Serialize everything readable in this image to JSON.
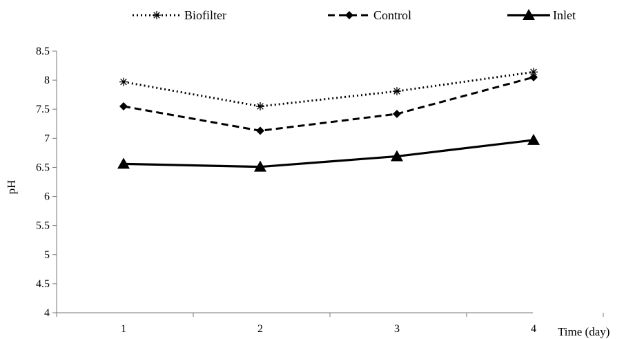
{
  "chart_data": {
    "type": "line",
    "xlabel": "Time (day)",
    "ylabel": "pH",
    "x": [
      1,
      2,
      3,
      4
    ],
    "ylim": [
      4,
      8.5
    ],
    "yticks": [
      "4",
      "4.5",
      "5",
      "5.5",
      "6",
      "6.5",
      "7",
      "7.5",
      "8",
      "8.5"
    ],
    "xticks": [
      "1",
      "2",
      "3",
      "4"
    ],
    "grid": false,
    "legend_position": "top",
    "series": [
      {
        "name": "Biofilter",
        "values": [
          7.97,
          7.55,
          7.81,
          8.14
        ],
        "line_style": "dotted",
        "marker": "asterisk",
        "color": "#000000"
      },
      {
        "name": "Control",
        "values": [
          7.55,
          7.13,
          7.42,
          8.05
        ],
        "line_style": "dashed",
        "marker": "diamond",
        "color": "#000000"
      },
      {
        "name": "Inlet",
        "values": [
          6.56,
          6.51,
          6.69,
          6.97
        ],
        "line_style": "solid",
        "marker": "triangle",
        "color": "#000000"
      }
    ]
  }
}
